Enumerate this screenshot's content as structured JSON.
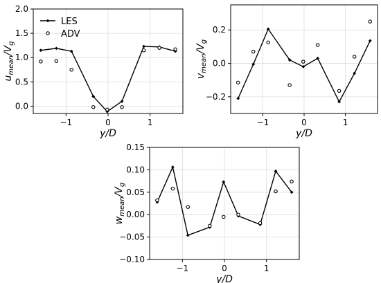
{
  "chart_data": [
    {
      "type": "line",
      "xlabel": "y/D",
      "ylabel": "u_mean/V_g",
      "xlim": [
        -1.78,
        1.78
      ],
      "ylim": [
        -0.15,
        2.0
      ],
      "xticks": [
        -1,
        0,
        1
      ],
      "xtick_labels": [
        "−1",
        "0",
        "1"
      ],
      "yticks": [
        0.0,
        0.5,
        1.0,
        1.5,
        2.0
      ],
      "ytick_labels": [
        "0.0",
        "0.5",
        "1.0",
        "1.5",
        "2.0"
      ],
      "grid": true,
      "legend": {
        "placement": "top-left",
        "entries": [
          "LES",
          "ADV"
        ]
      },
      "series": [
        {
          "name": "LES",
          "style": "line-marker",
          "x": [
            -1.6,
            -1.23,
            -0.87,
            -0.35,
            -0.02,
            0.33,
            0.85,
            1.22,
            1.6
          ],
          "y": [
            1.15,
            1.19,
            1.13,
            0.2,
            -0.11,
            0.1,
            1.23,
            1.22,
            1.13
          ]
        },
        {
          "name": "ADV",
          "style": "open-circle",
          "x": [
            -1.6,
            -1.23,
            -0.87,
            -0.35,
            -0.02,
            0.33,
            0.85,
            1.22,
            1.6
          ],
          "y": [
            0.92,
            0.93,
            0.75,
            -0.02,
            -0.07,
            -0.02,
            1.15,
            1.2,
            1.17
          ]
        }
      ]
    },
    {
      "type": "line",
      "xlabel": "y/D",
      "ylabel": "v_mean/V_g",
      "xlim": [
        -1.78,
        1.78
      ],
      "ylim": [
        -0.3,
        0.35
      ],
      "xticks": [
        -1,
        0,
        1
      ],
      "xtick_labels": [
        "−1",
        "0",
        "1"
      ],
      "yticks": [
        -0.2,
        0.0,
        0.2
      ],
      "ytick_labels": [
        "−0.2",
        "0.0",
        "0.2"
      ],
      "grid": true,
      "series": [
        {
          "name": "LES",
          "style": "line-marker",
          "x": [
            -1.6,
            -1.23,
            -0.87,
            -0.35,
            -0.02,
            0.33,
            0.85,
            1.22,
            1.6
          ],
          "y": [
            -0.21,
            -0.005,
            0.205,
            0.02,
            -0.02,
            0.03,
            -0.23,
            -0.06,
            0.135
          ]
        },
        {
          "name": "ADV",
          "style": "open-circle",
          "x": [
            -1.6,
            -1.23,
            -0.87,
            -0.35,
            -0.02,
            0.33,
            0.85,
            1.22,
            1.6
          ],
          "y": [
            -0.115,
            0.07,
            0.125,
            -0.13,
            0.01,
            0.11,
            -0.165,
            0.04,
            0.25
          ]
        }
      ]
    },
    {
      "type": "line",
      "xlabel": "y/D",
      "ylabel": "w_mean/V_g",
      "xlim": [
        -1.78,
        1.78
      ],
      "ylim": [
        -0.1,
        0.15
      ],
      "xticks": [
        -1,
        0,
        1
      ],
      "xtick_labels": [
        "−1",
        "0",
        "1"
      ],
      "yticks": [
        -0.1,
        -0.05,
        0.0,
        0.05,
        0.1,
        0.15
      ],
      "ytick_labels": [
        "−0.10",
        "−0.05",
        "0.00",
        "0.05",
        "0.10",
        "0.15"
      ],
      "grid": true,
      "series": [
        {
          "name": "LES",
          "style": "line-marker",
          "x": [
            -1.6,
            -1.23,
            -0.87,
            -0.35,
            -0.02,
            0.33,
            0.85,
            1.22,
            1.6
          ],
          "y": [
            0.028,
            0.106,
            -0.046,
            -0.028,
            0.073,
            -0.003,
            -0.022,
            0.097,
            0.05
          ]
        },
        {
          "name": "ADV",
          "style": "open-circle",
          "x": [
            -1.6,
            -1.23,
            -0.87,
            -0.35,
            -0.02,
            0.33,
            0.85,
            1.22,
            1.6
          ],
          "y": [
            0.032,
            0.058,
            0.017,
            -0.025,
            -0.005,
            0.0,
            -0.019,
            0.052,
            0.074
          ]
        }
      ]
    }
  ],
  "colors": {
    "line": "#000000",
    "grid": "#dcdcdc",
    "axes": "#000000"
  }
}
